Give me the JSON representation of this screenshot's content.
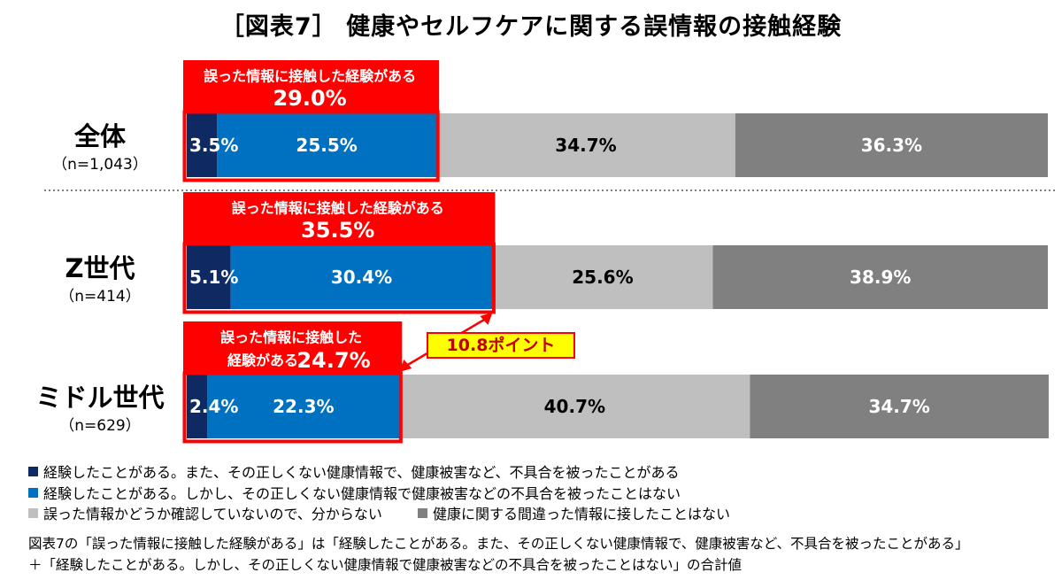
{
  "title": "［図表7］ 健康やセルフケアに関する誤情報の接触経験",
  "colors": {
    "series": [
      "#0f2a63",
      "#0070c0",
      "#bfbfbf",
      "#808080"
    ],
    "highlight": "#ff0000",
    "callout_fill": "#ffff00"
  },
  "chart_data": {
    "type": "bar",
    "orientation": "horizontal",
    "stacked": true,
    "normalized": true,
    "categories": [
      {
        "name": "全体",
        "n": "（n=1,043）"
      },
      {
        "name": "Z世代",
        "n": "（n=414）"
      },
      {
        "name": "ミドル世代",
        "n": "（n=629）"
      }
    ],
    "series": [
      {
        "name": "経験したことがある。また、その正しくない健康情報で、健康被害など、不具合を被ったことがある",
        "values": [
          3.5,
          5.1,
          2.4
        ],
        "labels": [
          "3.5%",
          "5.1%",
          "2.4%"
        ]
      },
      {
        "name": "経験したことがある。しかし、その正しくない健康情報で健康被害などの不具合を被ったことはない",
        "values": [
          25.5,
          30.4,
          22.3
        ],
        "labels": [
          "25.5%",
          "30.4%",
          "22.3%"
        ]
      },
      {
        "name": "誤った情報かどうか確認していないので、分からない",
        "values": [
          34.7,
          25.6,
          40.7
        ],
        "labels": [
          "34.7%",
          "25.6%",
          "40.7%"
        ]
      },
      {
        "name": "健康に関する間違った情報に接したことはない",
        "values": [
          36.3,
          38.9,
          34.7
        ],
        "labels": [
          "36.3%",
          "38.9%",
          "34.7%"
        ]
      }
    ],
    "totals": [
      {
        "value": 29.0,
        "caption_lines": [
          "誤った情報に接触した経験がある"
        ],
        "value_label": "29.0%"
      },
      {
        "value": 35.5,
        "caption_lines": [
          "誤った情報に接触した経験がある"
        ],
        "value_label": "35.5%"
      },
      {
        "value": 24.7,
        "caption_lines": [
          "誤った情報に接触した",
          "経験がある"
        ],
        "value_label": "24.7%"
      }
    ],
    "difference_callout": "10.8ポイント"
  },
  "legend": [
    {
      "label": "経験したことがある。また、その正しくない健康情報で、健康被害など、不具合を被ったことがある"
    },
    {
      "label": "経験したことがある。しかし、その正しくない健康情報で健康被害などの不具合を被ったことはない"
    },
    {
      "label": "誤った情報かどうか確認していないので、分からない"
    },
    {
      "label": "健康に関する間違った情報に接したことはない"
    }
  ],
  "notes": [
    "図表7の「誤った情報に接触した経験がある」は「経験したことがある。また、その正しくない健康情報で、健康被害など、不具合を被ったことがある」",
    "＋「経験したことがある。しかし、その正しくない健康情報で健康被害などの不具合を被ったことはない」の合計値"
  ]
}
